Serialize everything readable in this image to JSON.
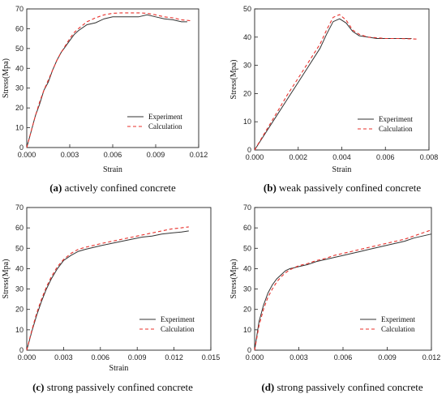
{
  "legend": {
    "experiment": "Experiment",
    "calculation": "Calculation"
  },
  "colors": {
    "experiment": "#333333",
    "calculation": "#e8302b"
  },
  "chart_data": [
    {
      "type": "line",
      "caption_letter": "(a)",
      "caption_text": " actively confined concrete",
      "xlabel": "Strain",
      "ylabel": "Stress(Mpa)",
      "xlim": [
        0,
        0.012
      ],
      "ylim": [
        0,
        70
      ],
      "xticks": [
        0,
        0.003,
        0.006,
        0.009,
        0.012
      ],
      "xtick_labels": [
        "0.000",
        "0.003",
        "0.006",
        "0.009",
        "0.012"
      ],
      "yticks": [
        0,
        10,
        20,
        30,
        40,
        50,
        60,
        70
      ],
      "ytick_labels": [
        "0",
        "10",
        "20",
        "30",
        "40",
        "50",
        "60",
        "70"
      ],
      "legend_position": "bottom-right",
      "series": [
        {
          "name": "Experiment",
          "x": [
            0,
            0.0003,
            0.0006,
            0.0009,
            0.0012,
            0.0015,
            0.0018,
            0.0021,
            0.0024,
            0.0027,
            0.003,
            0.0033,
            0.0036,
            0.0042,
            0.0048,
            0.0054,
            0.006,
            0.0066,
            0.0072,
            0.0078,
            0.0084,
            0.009,
            0.0096,
            0.0102,
            0.0108,
            0.0112
          ],
          "y": [
            0,
            8,
            16,
            22,
            29,
            33,
            39,
            44,
            48,
            51,
            54,
            57,
            59,
            62,
            63,
            65,
            66,
            66,
            66,
            66,
            67,
            66,
            65,
            64.5,
            63.5,
            63.5
          ]
        },
        {
          "name": "Calculation",
          "x": [
            0,
            0.0003,
            0.0006,
            0.0009,
            0.0012,
            0.0015,
            0.0018,
            0.0021,
            0.0024,
            0.0027,
            0.003,
            0.0033,
            0.0036,
            0.0042,
            0.0048,
            0.0054,
            0.006,
            0.0066,
            0.0072,
            0.0078,
            0.0084,
            0.009,
            0.0096,
            0.0102,
            0.0108,
            0.0115
          ],
          "y": [
            0,
            8,
            16,
            23,
            29,
            34,
            39,
            44,
            48,
            51.5,
            55,
            58,
            60,
            63.5,
            65.5,
            67,
            67.8,
            68,
            68,
            68,
            67.8,
            67,
            66,
            65.5,
            64.5,
            64
          ]
        }
      ]
    },
    {
      "type": "line",
      "caption_letter": "(b)",
      "caption_text": " weak passively confined concrete",
      "xlabel": "Strain",
      "ylabel": "Stress(Mpa)",
      "xlim": [
        0,
        0.008
      ],
      "ylim": [
        0,
        50
      ],
      "xticks": [
        0,
        0.002,
        0.004,
        0.006,
        0.008
      ],
      "xtick_labels": [
        "0.000",
        "0.002",
        "0.004",
        "0.006",
        "0.008"
      ],
      "yticks": [
        0,
        10,
        20,
        30,
        40,
        50
      ],
      "ytick_labels": [
        "0",
        "10",
        "20",
        "30",
        "40",
        "50"
      ],
      "legend_position": "bottom-right",
      "series": [
        {
          "name": "Experiment",
          "x": [
            0,
            0.0005,
            0.001,
            0.0015,
            0.002,
            0.0025,
            0.003,
            0.0033,
            0.0036,
            0.0039,
            0.0042,
            0.0045,
            0.0048,
            0.0052,
            0.0056,
            0.006,
            0.0066,
            0.0072
          ],
          "y": [
            0,
            6,
            12,
            18,
            24,
            30,
            36,
            41,
            45.5,
            46.5,
            45,
            42,
            40.5,
            40,
            39.5,
            39.5,
            39.5,
            39.5
          ]
        },
        {
          "name": "Calculation",
          "x": [
            0,
            0.0005,
            0.001,
            0.0015,
            0.002,
            0.0025,
            0.003,
            0.0033,
            0.0036,
            0.0039,
            0.0042,
            0.0045,
            0.0048,
            0.0052,
            0.0056,
            0.006,
            0.0066,
            0.0075
          ],
          "y": [
            0,
            6.5,
            13,
            19.5,
            25.5,
            31.5,
            37.5,
            42.5,
            47,
            48,
            46,
            42.5,
            41,
            40,
            39.8,
            39.5,
            39.5,
            39.3
          ]
        }
      ]
    },
    {
      "type": "line",
      "caption_letter": "(c)",
      "caption_text": " strong passively confined concrete",
      "xlabel": "Strain",
      "ylabel": "Stress(Mpa)",
      "xlim": [
        0,
        0.015
      ],
      "ylim": [
        0,
        70
      ],
      "xticks": [
        0,
        0.003,
        0.006,
        0.009,
        0.012,
        0.015
      ],
      "xtick_labels": [
        "0.000",
        "0.003",
        "0.006",
        "0.009",
        "0.012",
        "0.015"
      ],
      "yticks": [
        0,
        10,
        20,
        30,
        40,
        50,
        60,
        70
      ],
      "ytick_labels": [
        "0",
        "10",
        "20",
        "30",
        "40",
        "50",
        "60",
        "70"
      ],
      "legend_position": "bottom-right",
      "series": [
        {
          "name": "Experiment",
          "x": [
            0,
            0.0004,
            0.0008,
            0.0012,
            0.0016,
            0.002,
            0.0025,
            0.003,
            0.0036,
            0.0042,
            0.0048,
            0.0055,
            0.0062,
            0.007,
            0.0078,
            0.0086,
            0.0094,
            0.0102,
            0.011,
            0.0118,
            0.0126,
            0.0132
          ],
          "y": [
            0,
            9,
            17,
            24,
            30,
            35,
            40,
            44,
            46.5,
            48.5,
            49.5,
            50.5,
            51.5,
            52.5,
            53.5,
            54.5,
            55.5,
            56,
            57,
            57.5,
            58,
            58.5
          ]
        },
        {
          "name": "Calculation",
          "x": [
            0,
            0.0004,
            0.0008,
            0.0012,
            0.0016,
            0.002,
            0.0025,
            0.003,
            0.0036,
            0.0042,
            0.0048,
            0.0055,
            0.0062,
            0.007,
            0.0078,
            0.0086,
            0.0094,
            0.0102,
            0.011,
            0.0118,
            0.0126,
            0.0132
          ],
          "y": [
            0,
            9.5,
            18,
            25,
            31,
            36,
            41,
            44.5,
            47.5,
            49.5,
            50.5,
            51.5,
            52.5,
            53.5,
            54.5,
            55.5,
            56.5,
            57.5,
            58.5,
            59.5,
            60,
            60.5
          ]
        }
      ]
    },
    {
      "type": "line",
      "caption_letter": "(d)",
      "caption_text": " strong passively confined concrete",
      "xlabel": "",
      "ylabel": "Stress(Mpa)",
      "xlim": [
        0,
        0.012
      ],
      "ylim": [
        0,
        70
      ],
      "xticks": [
        0,
        0.003,
        0.006,
        0.009,
        0.012
      ],
      "xtick_labels": [
        "0.000",
        "0.003",
        "0.006",
        "0.009",
        "0.012"
      ],
      "yticks": [
        0,
        10,
        20,
        30,
        40,
        50,
        60,
        70
      ],
      "ytick_labels": [
        "0",
        "10",
        "20",
        "30",
        "40",
        "50",
        "60",
        "70"
      ],
      "legend_position": "bottom-right",
      "series": [
        {
          "name": "Experiment",
          "x": [
            0,
            0.0003,
            0.0006,
            0.0009,
            0.0012,
            0.0015,
            0.0018,
            0.0021,
            0.0024,
            0.0027,
            0.003,
            0.0036,
            0.0042,
            0.0048,
            0.0054,
            0.006,
            0.0066,
            0.0072,
            0.0078,
            0.0084,
            0.009,
            0.0096,
            0.0102,
            0.0108,
            0.0114,
            0.012
          ],
          "y": [
            0,
            14,
            22,
            28,
            32,
            35,
            37,
            39,
            40,
            40.5,
            41,
            42,
            43.5,
            44.5,
            45.5,
            46.5,
            47.5,
            48.5,
            49.5,
            50.5,
            51.5,
            52.5,
            53.5,
            55,
            56,
            57
          ]
        },
        {
          "name": "Calculation",
          "x": [
            0,
            0.0003,
            0.0006,
            0.0009,
            0.0012,
            0.0015,
            0.0018,
            0.0021,
            0.0024,
            0.0027,
            0.003,
            0.0036,
            0.0042,
            0.0048,
            0.0054,
            0.006,
            0.0066,
            0.0072,
            0.0078,
            0.0084,
            0.009,
            0.0096,
            0.0102,
            0.0108,
            0.0114,
            0.012
          ],
          "y": [
            0,
            12,
            20,
            26,
            30,
            33.5,
            36,
            38,
            39.5,
            40.5,
            41.5,
            42.5,
            44,
            45,
            46.5,
            47.5,
            48.5,
            49.5,
            50.5,
            51.5,
            52.5,
            53.5,
            54.5,
            56,
            57.5,
            59
          ]
        }
      ]
    }
  ]
}
